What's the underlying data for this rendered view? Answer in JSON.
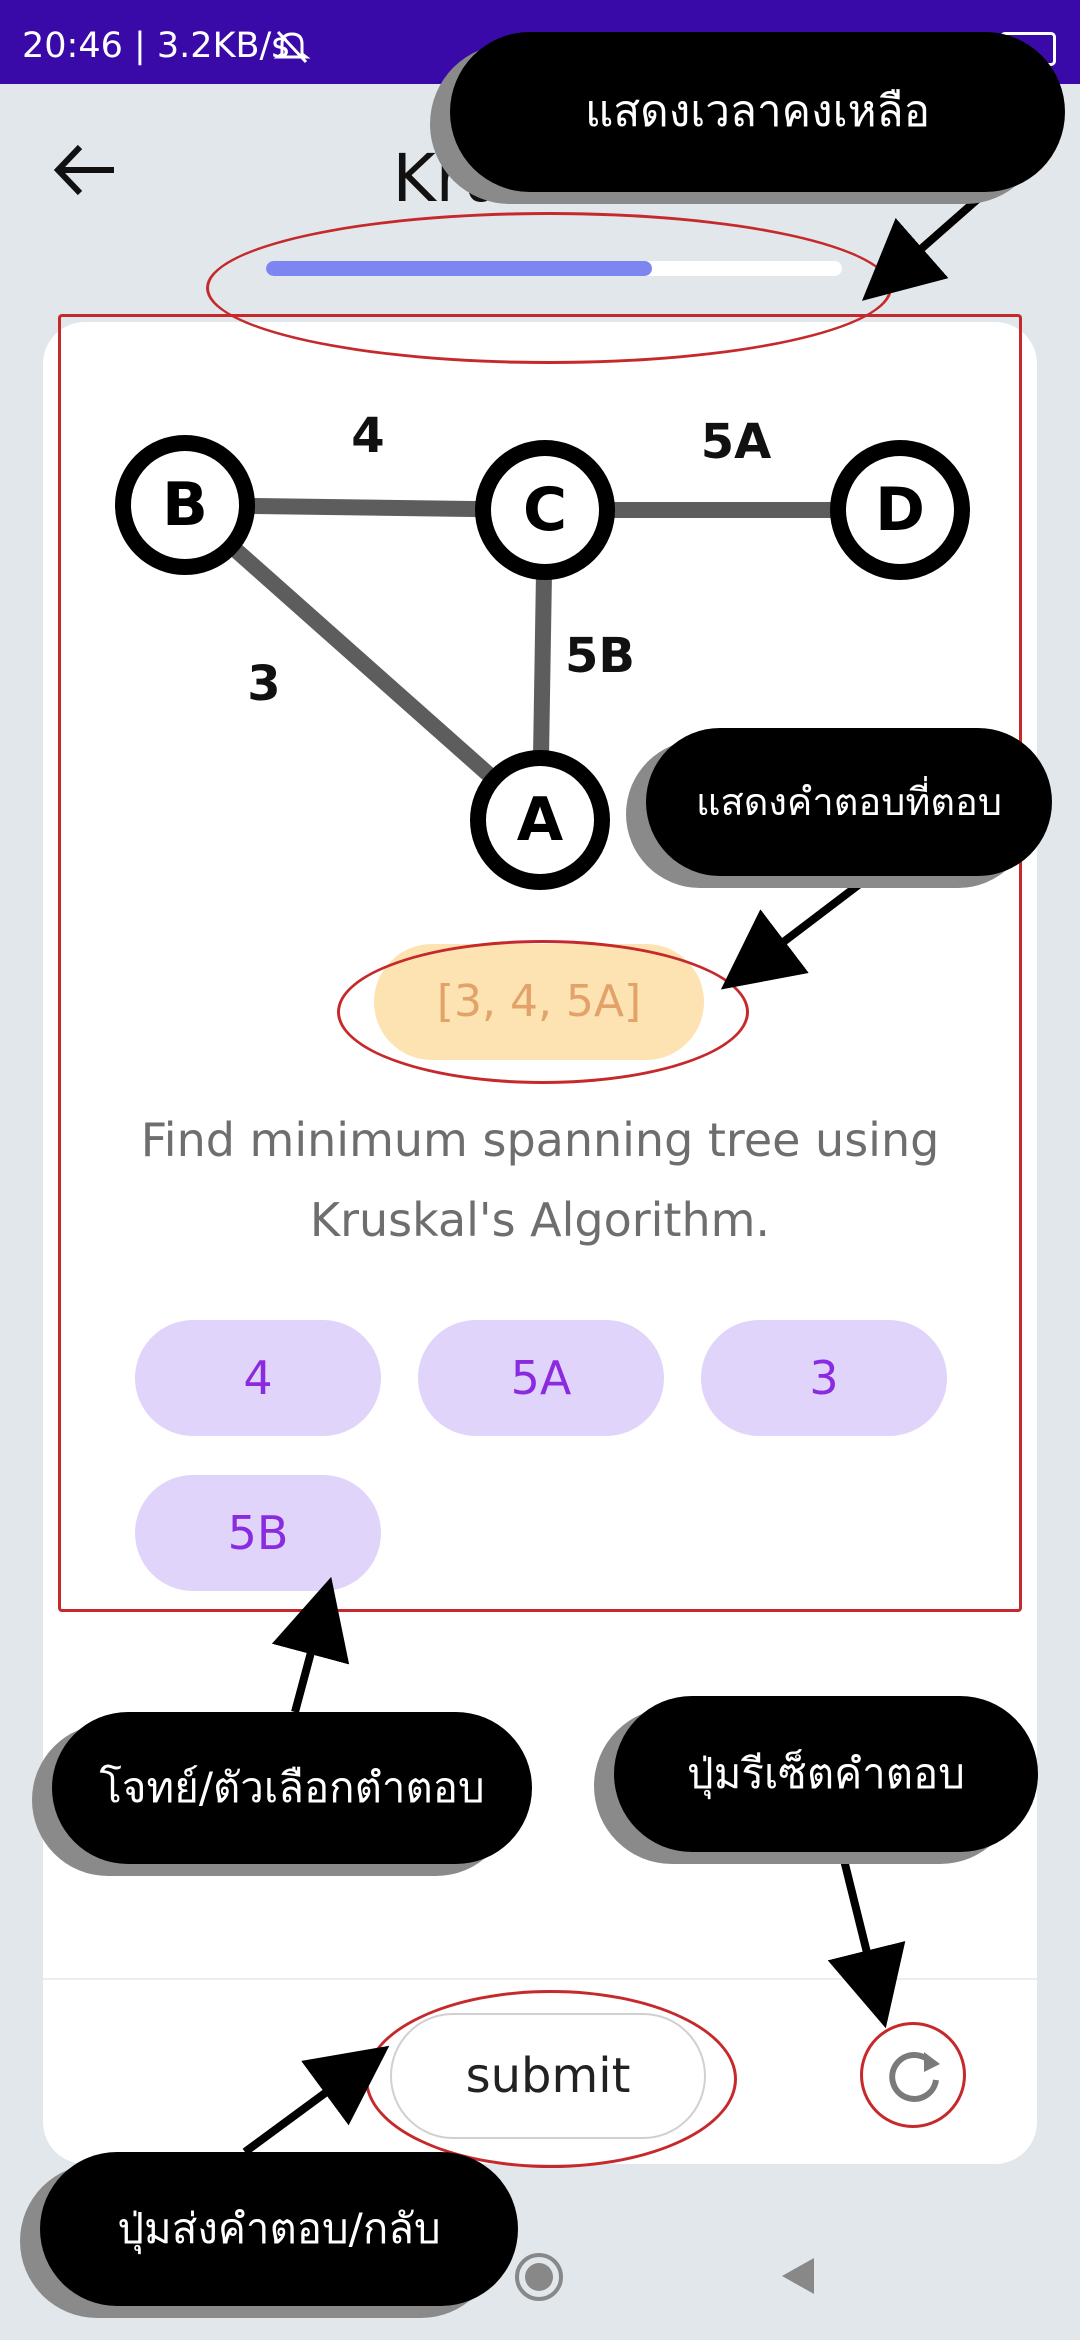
{
  "status_bar": {
    "time_speed": "20:46 | 3.2KB/s"
  },
  "header": {
    "title": "Kruskal's",
    "back_icon": "arrow-left-icon"
  },
  "progress": {
    "fraction": 0.67
  },
  "graph": {
    "nodes": [
      "B",
      "C",
      "D",
      "A"
    ],
    "edges": [
      {
        "label": "4",
        "from": "B",
        "to": "C"
      },
      {
        "label": "5A",
        "from": "C",
        "to": "D"
      },
      {
        "label": "5B",
        "from": "C",
        "to": "A"
      },
      {
        "label": "3",
        "from": "B",
        "to": "A"
      }
    ]
  },
  "answer": {
    "value": "[3, 4, 5A]"
  },
  "question": {
    "line1": "Find minimum spanning tree using",
    "line2": "Kruskal's Algorithm."
  },
  "options": [
    "4",
    "5A",
    "3",
    "5B"
  ],
  "footer": {
    "submit_label": "submit",
    "reset_icon": "refresh-icon"
  },
  "annotations": {
    "time": "แสดงเวลาคงเหลือ",
    "answer": "แสดงคำตอบที่ตอบ",
    "options": "โจทย์/ตัวเลือกตำตอบ",
    "reset": "ปุ่มรีเซ็ตคำตอบ",
    "submit": "ปุ่มส่งคำตอบ/กลับ"
  },
  "colors": {
    "status_bar": "#3a0aa8",
    "progress_fill": "#7d85f0",
    "answer_bg": "#fde2b2",
    "option_bg": "#e1d4fa",
    "option_text": "#8b2be0",
    "annotation_outline": "#c6292b"
  }
}
